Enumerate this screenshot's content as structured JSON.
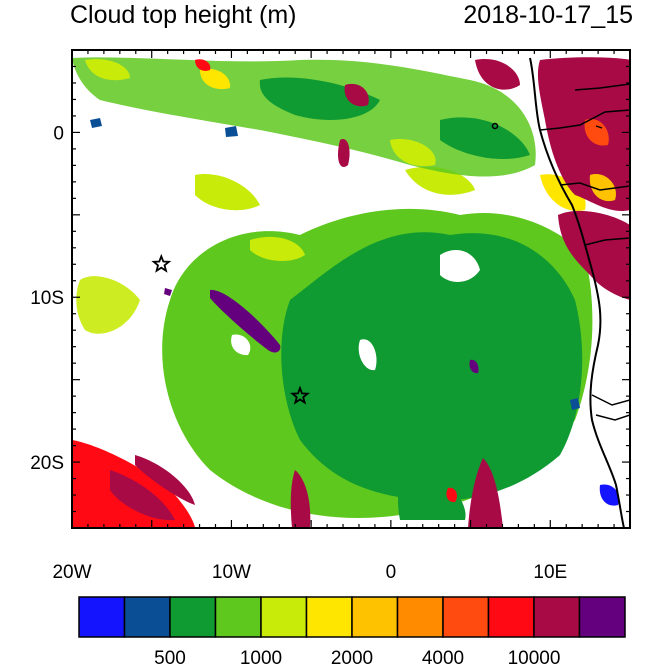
{
  "title": "Cloud top height (m)",
  "timestamp": "2018-10-17_15",
  "map": {
    "lon_range": [
      -20,
      15
    ],
    "lat_range": [
      -24,
      5
    ],
    "x_ticks": [
      {
        "lon": -20,
        "label": "20W"
      },
      {
        "lon": -10,
        "label": "10W"
      },
      {
        "lon": 0,
        "label": "0"
      },
      {
        "lon": 10,
        "label": "10E"
      }
    ],
    "y_ticks": [
      {
        "lat": 0,
        "label": "0"
      },
      {
        "lat": -10,
        "label": "10S"
      },
      {
        "lat": -20,
        "label": "20S"
      }
    ],
    "star_markers": [
      {
        "name": "star-marker-st-helena",
        "lon": -14.4,
        "lat": -8.0
      },
      {
        "name": "star-marker-ascension",
        "lon": -5.7,
        "lat": -16.0
      }
    ]
  },
  "colorbar": {
    "colors": [
      "#1414ff",
      "#0a4e96",
      "#0f9a32",
      "#5fc81e",
      "#c8eb0a",
      "#ffe600",
      "#ffc200",
      "#ff8c00",
      "#ff4b0f",
      "#ff0a14",
      "#a80a46",
      "#64007d"
    ],
    "labels": [
      "500",
      "1000",
      "2000",
      "4000",
      "10000"
    ]
  }
}
